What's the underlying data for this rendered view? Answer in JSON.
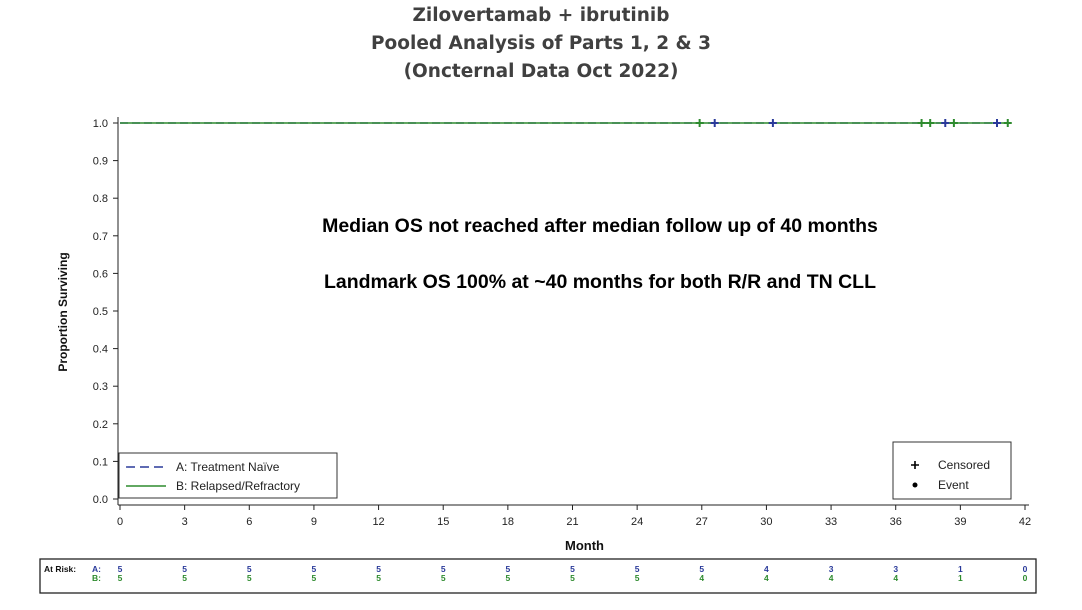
{
  "chart_data": {
    "type": "line",
    "title_lines": [
      "Zilovertamab + ibrutinib",
      "Pooled Analysis of Parts 1, 2 & 3",
      "(Oncternal Data Oct 2022)"
    ],
    "xlabel": "Month",
    "ylabel": "Proportion Surviving",
    "xlim": [
      0,
      42
    ],
    "ylim": [
      0,
      1
    ],
    "x_ticks": [
      0,
      3,
      6,
      9,
      12,
      15,
      18,
      21,
      24,
      27,
      30,
      33,
      36,
      39,
      42
    ],
    "x_tick_labels": [
      "0",
      "3",
      "6",
      "9",
      "12",
      "15",
      "18",
      "21",
      "24",
      "27",
      "30",
      "33",
      "36",
      "39",
      "42"
    ],
    "y_ticks": [
      0,
      0.1,
      0.2,
      0.3,
      0.4,
      0.5,
      0.6,
      0.7,
      0.8,
      0.9,
      1.0
    ],
    "y_tick_labels": [
      "0.0",
      "0.1",
      "0.2",
      "0.3",
      "0.4",
      "0.5",
      "0.6",
      "0.7",
      "0.8",
      "0.9",
      "1.0"
    ],
    "series": [
      {
        "name": "A: Treatment Naïve",
        "color": "#2a3a9a",
        "dash": "dashed",
        "x": [
          0,
          40.7
        ],
        "y": [
          1.0,
          1.0
        ],
        "censored": [
          27.6,
          30.3,
          38.3,
          40.7
        ]
      },
      {
        "name": "B: Relapsed/Refractory",
        "color": "#2e8b2e",
        "dash": "solid",
        "x": [
          0,
          41.2
        ],
        "y": [
          1.0,
          1.0
        ],
        "censored": [
          26.9,
          37.2,
          37.6,
          38.7,
          41.2
        ]
      }
    ],
    "legend": {
      "position": "bottom-left",
      "entries": [
        "A: Treatment Naïve",
        "B: Relapsed/Refractory"
      ]
    },
    "symbol_legend": {
      "position": "bottom-right",
      "entries": [
        {
          "symbol": "+",
          "label": "Censored"
        },
        {
          "symbol": "•",
          "label": "Event"
        }
      ]
    },
    "annotations": [
      "Median OS not reached after median follow up of 40 months",
      "Landmark OS 100% at ~40 months for both R/R and TN CLL"
    ],
    "at_risk": {
      "label": "At Risk:",
      "times": [
        0,
        3,
        6,
        9,
        12,
        15,
        18,
        21,
        24,
        27,
        30,
        33,
        36,
        39,
        42
      ],
      "rows": [
        {
          "label": "A:",
          "color": "#2a3a9a",
          "values": [
            "5",
            "5",
            "5",
            "5",
            "5",
            "5",
            "5",
            "5",
            "5",
            "5",
            "4",
            "3",
            "3",
            "1",
            "0"
          ]
        },
        {
          "label": "B:",
          "color": "#2e8b2e",
          "values": [
            "5",
            "5",
            "5",
            "5",
            "5",
            "5",
            "5",
            "5",
            "5",
            "4",
            "4",
            "4",
            "4",
            "1",
            "0"
          ]
        }
      ]
    }
  }
}
